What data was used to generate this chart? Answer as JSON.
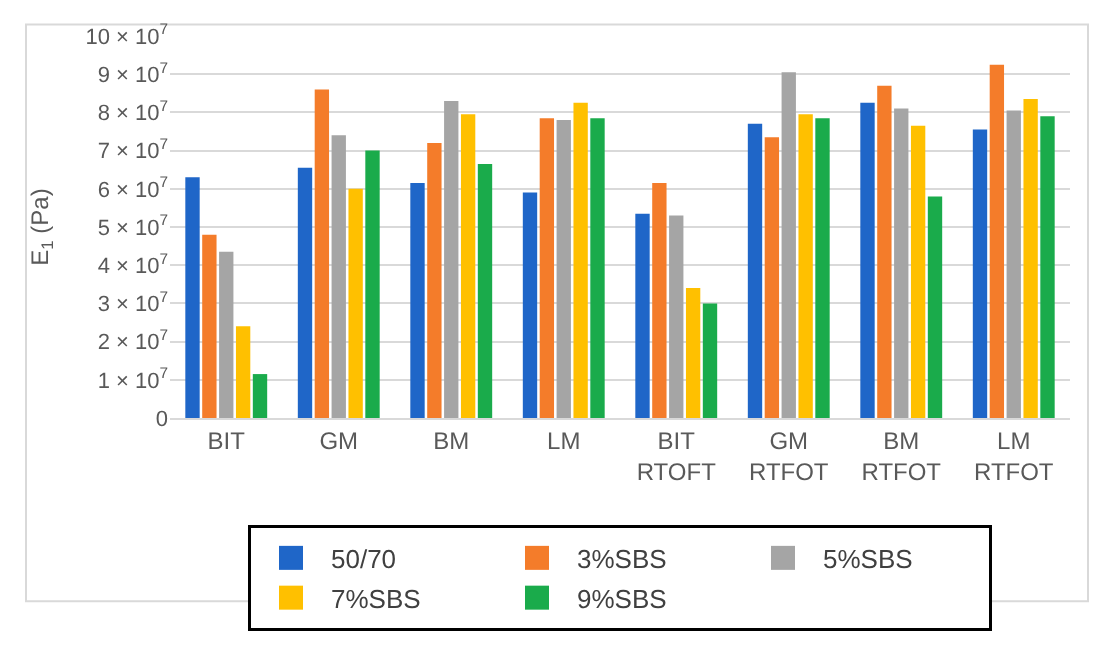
{
  "chart_data": {
    "type": "bar",
    "ylabel": "E$_{1}$ (Pa)",
    "categories": [
      "BIT",
      "GM",
      "BM",
      "LM",
      "BIT RTOFT",
      "GM RTFOT",
      "BM RTFOT",
      "LM RTFOT"
    ],
    "series": [
      {
        "name": "50/70",
        "color": "#1f66c8",
        "values": [
          63000000,
          65500000,
          61500000,
          59000000,
          53500000,
          77000000,
          82500000,
          75500000
        ]
      },
      {
        "name": "3%SBS",
        "color": "#f47c2a",
        "values": [
          48000000,
          86000000,
          72000000,
          78500000,
          61500000,
          73500000,
          87000000,
          92500000
        ]
      },
      {
        "name": "5%SBS",
        "color": "#a5a5a5",
        "values": [
          43500000,
          74000000,
          83000000,
          78000000,
          53000000,
          90500000,
          81000000,
          80500000
        ]
      },
      {
        "name": "7%SBS",
        "color": "#ffc000",
        "values": [
          24000000,
          60000000,
          79500000,
          82500000,
          34000000,
          79500000,
          76500000,
          83500000
        ]
      },
      {
        "name": "9%SBS",
        "color": "#1aab4b",
        "values": [
          11500000,
          70000000,
          66500000,
          78500000,
          30000000,
          78500000,
          58000000,
          79000000
        ]
      }
    ],
    "ylim": [
      0,
      100000000
    ],
    "yticks": [
      0,
      {
        "value": 10000000,
        "label": "1 × 10$^{7}$"
      },
      {
        "value": 20000000,
        "label": "2 × 10$^{7}$"
      },
      {
        "value": 30000000,
        "label": "3 × 10$^{7}$"
      },
      {
        "value": 40000000,
        "label": "4 × 10$^{7}$"
      },
      {
        "value": 50000000,
        "label": "5 × 10$^{7}$"
      },
      {
        "value": 60000000,
        "label": "6 × 10$^{7}$"
      },
      {
        "value": 70000000,
        "label": "7 × 10$^{7}$"
      },
      {
        "value": 80000000,
        "label": "8 × 10$^{7}$"
      },
      {
        "value": 90000000,
        "label": "9 × 10$^{7}$"
      },
      {
        "value": 100000000,
        "label": "10 × 10$^{7}$"
      }
    ],
    "grid": "y",
    "legend": "bottom"
  }
}
